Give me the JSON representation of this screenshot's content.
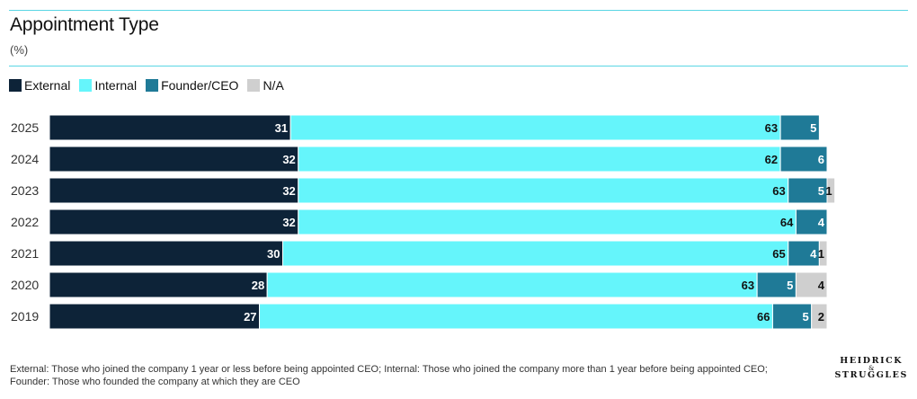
{
  "header": {
    "title": "Appointment Type",
    "subtitle": "(%)"
  },
  "legend": [
    {
      "label": "External",
      "color": "#0d2338"
    },
    {
      "label": "Internal",
      "color": "#65f5fb"
    },
    {
      "label": "Founder/CEO",
      "color": "#1f7a97"
    },
    {
      "label": "N/A",
      "color": "#cfcfcf"
    }
  ],
  "chart_data": {
    "type": "bar",
    "orientation": "horizontal",
    "stacked": true,
    "title": "Appointment Type",
    "subtitle": "(%)",
    "categories": [
      "2025",
      "2024",
      "2023",
      "2022",
      "2021",
      "2020",
      "2019"
    ],
    "series": [
      {
        "name": "External",
        "color": "#0d2338",
        "label_color": "#ffffff",
        "values": [
          31,
          32,
          32,
          32,
          30,
          28,
          27
        ]
      },
      {
        "name": "Internal",
        "color": "#65f5fb",
        "label_color": "#111111",
        "values": [
          63,
          62,
          63,
          64,
          65,
          63,
          66
        ]
      },
      {
        "name": "Founder/CEO",
        "color": "#1f7a97",
        "label_color": "#ffffff",
        "values": [
          5,
          6,
          5,
          4,
          4,
          5,
          5
        ]
      },
      {
        "name": "N/A",
        "color": "#cfcfcf",
        "label_color": "#111111",
        "values": [
          0,
          0,
          1,
          0,
          1,
          4,
          2
        ]
      }
    ],
    "xlim": [
      0,
      100
    ],
    "grid": false,
    "legend_position": "top-left"
  },
  "footnote": "External: Those who joined the company 1 year or less before being appointed CEO; Internal: Those who joined the company more than 1 year before being appointed CEO; Founder: Those who founded the company at which they are CEO",
  "logo": {
    "line1": "HEIDRICK",
    "amp": "&",
    "line2": "STRUGGLES"
  }
}
